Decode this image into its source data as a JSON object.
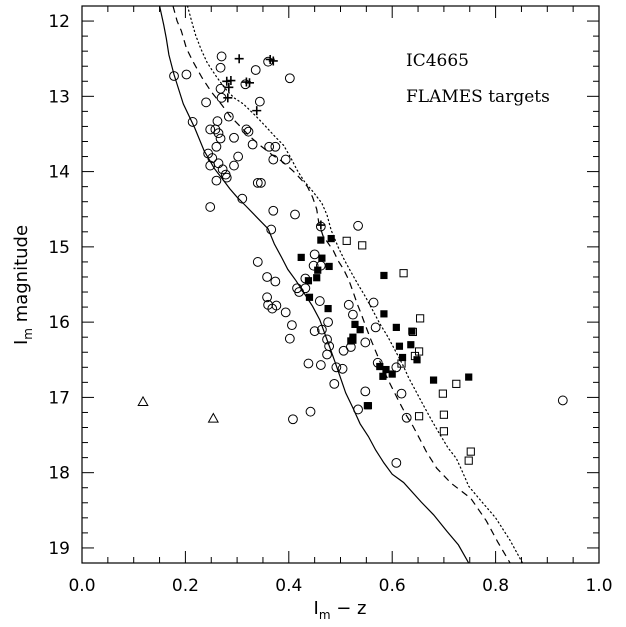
{
  "chart_data": {
    "type": "scatter",
    "title": "",
    "annotations": [
      "IC4665",
      "FLAMES targets"
    ],
    "xlabel_main": "I",
    "xlabel_sub": "m",
    "xlabel_rest": " − z",
    "ylabel_main": "I",
    "ylabel_sub": "m",
    "ylabel_rest": " magnitude",
    "xlim": [
      0.0,
      1.0
    ],
    "ylim": [
      19.2,
      11.8
    ],
    "x_inverted": false,
    "y_inverted": true,
    "x_ticks": [
      "0.0",
      "0.2",
      "0.4",
      "0.6",
      "0.8",
      "1.0"
    ],
    "y_ticks": [
      "12",
      "13",
      "14",
      "15",
      "16",
      "17",
      "18",
      "19"
    ],
    "grid": false,
    "legend": "none",
    "series": [
      {
        "marker": "open-circle",
        "points": [
          [
            0.27,
            12.47
          ],
          [
            0.336,
            12.65
          ],
          [
            0.36,
            12.54
          ],
          [
            0.178,
            12.73
          ],
          [
            0.202,
            12.71
          ],
          [
            0.268,
            12.62
          ],
          [
            0.316,
            12.84
          ],
          [
            0.268,
            12.9
          ],
          [
            0.402,
            12.76
          ],
          [
            0.27,
            13.02
          ],
          [
            0.24,
            13.08
          ],
          [
            0.344,
            13.07
          ],
          [
            0.284,
            13.27
          ],
          [
            0.262,
            13.33
          ],
          [
            0.214,
            13.34
          ],
          [
            0.258,
            13.44
          ],
          [
            0.248,
            13.44
          ],
          [
            0.264,
            13.49
          ],
          [
            0.322,
            13.47
          ],
          [
            0.318,
            13.44
          ],
          [
            0.294,
            13.55
          ],
          [
            0.268,
            13.56
          ],
          [
            0.26,
            13.67
          ],
          [
            0.244,
            13.76
          ],
          [
            0.33,
            13.64
          ],
          [
            0.362,
            13.67
          ],
          [
            0.374,
            13.67
          ],
          [
            0.302,
            13.8
          ],
          [
            0.264,
            13.89
          ],
          [
            0.294,
            13.92
          ],
          [
            0.252,
            13.82
          ],
          [
            0.248,
            13.92
          ],
          [
            0.37,
            13.84
          ],
          [
            0.394,
            13.84
          ],
          [
            0.26,
            14.12
          ],
          [
            0.28,
            14.08
          ],
          [
            0.272,
            13.97
          ],
          [
            0.278,
            14.04
          ],
          [
            0.346,
            14.15
          ],
          [
            0.34,
            14.15
          ],
          [
            0.31,
            14.36
          ],
          [
            0.248,
            14.47
          ],
          [
            0.37,
            14.52
          ],
          [
            0.412,
            14.57
          ],
          [
            0.366,
            14.77
          ],
          [
            0.462,
            14.73
          ],
          [
            0.534,
            14.72
          ],
          [
            0.45,
            15.1
          ],
          [
            0.34,
            15.2
          ],
          [
            0.448,
            15.25
          ],
          [
            0.462,
            15.25
          ],
          [
            0.358,
            15.4
          ],
          [
            0.374,
            15.46
          ],
          [
            0.432,
            15.42
          ],
          [
            0.416,
            15.55
          ],
          [
            0.432,
            15.55
          ],
          [
            0.42,
            15.6
          ],
          [
            0.358,
            15.67
          ],
          [
            0.36,
            15.77
          ],
          [
            0.376,
            15.78
          ],
          [
            0.368,
            15.82
          ],
          [
            0.394,
            15.87
          ],
          [
            0.46,
            15.72
          ],
          [
            0.516,
            15.77
          ],
          [
            0.564,
            15.74
          ],
          [
            0.524,
            15.9
          ],
          [
            0.476,
            16.0
          ],
          [
            0.406,
            16.04
          ],
          [
            0.568,
            16.07
          ],
          [
            0.45,
            16.12
          ],
          [
            0.464,
            16.1
          ],
          [
            0.402,
            16.22
          ],
          [
            0.474,
            16.23
          ],
          [
            0.478,
            16.32
          ],
          [
            0.506,
            16.38
          ],
          [
            0.474,
            16.43
          ],
          [
            0.548,
            16.27
          ],
          [
            0.52,
            16.33
          ],
          [
            0.572,
            16.54
          ],
          [
            0.438,
            16.55
          ],
          [
            0.462,
            16.57
          ],
          [
            0.492,
            16.6
          ],
          [
            0.608,
            16.6
          ],
          [
            0.504,
            16.62
          ],
          [
            0.488,
            16.82
          ],
          [
            0.548,
            16.92
          ],
          [
            0.618,
            16.95
          ],
          [
            0.628,
            17.27
          ],
          [
            0.534,
            17.16
          ],
          [
            0.442,
            17.19
          ],
          [
            0.408,
            17.29
          ],
          [
            0.608,
            17.87
          ],
          [
            0.93,
            17.04
          ]
        ]
      },
      {
        "marker": "filled-square",
        "points": [
          [
            0.462,
            14.91
          ],
          [
            0.482,
            14.89
          ],
          [
            0.424,
            15.14
          ],
          [
            0.464,
            15.15
          ],
          [
            0.478,
            15.26
          ],
          [
            0.456,
            15.31
          ],
          [
            0.584,
            15.38
          ],
          [
            0.438,
            15.45
          ],
          [
            0.454,
            15.41
          ],
          [
            0.44,
            15.67
          ],
          [
            0.584,
            15.89
          ],
          [
            0.476,
            15.82
          ],
          [
            0.528,
            16.03
          ],
          [
            0.538,
            16.1
          ],
          [
            0.608,
            16.07
          ],
          [
            0.638,
            16.12
          ],
          [
            0.524,
            16.2
          ],
          [
            0.52,
            16.25
          ],
          [
            0.524,
            16.24
          ],
          [
            0.614,
            16.32
          ],
          [
            0.636,
            16.3
          ],
          [
            0.62,
            16.47
          ],
          [
            0.648,
            16.5
          ],
          [
            0.576,
            16.59
          ],
          [
            0.588,
            16.63
          ],
          [
            0.582,
            16.72
          ],
          [
            0.6,
            16.69
          ],
          [
            0.68,
            16.77
          ],
          [
            0.748,
            16.73
          ],
          [
            0.552,
            17.11
          ],
          [
            0.554,
            17.11
          ]
        ]
      },
      {
        "marker": "open-square",
        "points": [
          [
            0.512,
            14.92
          ],
          [
            0.542,
            14.98
          ],
          [
            0.622,
            15.35
          ],
          [
            0.654,
            15.95
          ],
          [
            0.64,
            16.13
          ],
          [
            0.652,
            16.39
          ],
          [
            0.644,
            16.45
          ],
          [
            0.618,
            16.55
          ],
          [
            0.724,
            16.82
          ],
          [
            0.698,
            16.95
          ],
          [
            0.7,
            17.23
          ],
          [
            0.652,
            17.25
          ],
          [
            0.7,
            17.45
          ],
          [
            0.752,
            17.72
          ],
          [
            0.748,
            17.84
          ]
        ]
      },
      {
        "marker": "plus",
        "points": [
          [
            0.304,
            12.5
          ],
          [
            0.364,
            12.51
          ],
          [
            0.37,
            12.53
          ],
          [
            0.288,
            12.79
          ],
          [
            0.28,
            12.8
          ],
          [
            0.318,
            12.81
          ],
          [
            0.324,
            12.82
          ],
          [
            0.284,
            12.88
          ],
          [
            0.282,
            13.02
          ],
          [
            0.338,
            13.19
          ],
          [
            0.462,
            14.71
          ]
        ]
      },
      {
        "marker": "open-triangle",
        "points": [
          [
            0.118,
            17.06
          ],
          [
            0.254,
            17.28
          ]
        ]
      },
      {
        "style": "solid",
        "points": [
          [
            0.15,
            11.8
          ],
          [
            0.158,
            12.05
          ],
          [
            0.163,
            12.23
          ],
          [
            0.168,
            12.45
          ],
          [
            0.178,
            12.71
          ],
          [
            0.196,
            13.1
          ],
          [
            0.218,
            13.42
          ],
          [
            0.236,
            13.72
          ],
          [
            0.256,
            13.96
          ],
          [
            0.274,
            14.12
          ],
          [
            0.286,
            14.23
          ],
          [
            0.3,
            14.34
          ],
          [
            0.316,
            14.45
          ],
          [
            0.34,
            14.62
          ],
          [
            0.36,
            14.76
          ],
          [
            0.372,
            14.96
          ],
          [
            0.386,
            15.14
          ],
          [
            0.398,
            15.3
          ],
          [
            0.414,
            15.45
          ],
          [
            0.432,
            15.64
          ],
          [
            0.446,
            15.79
          ],
          [
            0.46,
            15.97
          ],
          [
            0.47,
            16.16
          ],
          [
            0.48,
            16.35
          ],
          [
            0.49,
            16.54
          ],
          [
            0.5,
            16.74
          ],
          [
            0.51,
            16.94
          ],
          [
            0.524,
            17.14
          ],
          [
            0.538,
            17.35
          ],
          [
            0.554,
            17.52
          ],
          [
            0.568,
            17.7
          ],
          [
            0.584,
            17.87
          ],
          [
            0.6,
            18.02
          ],
          [
            0.622,
            18.13
          ],
          [
            0.656,
            18.39
          ],
          [
            0.68,
            18.56
          ],
          [
            0.706,
            18.78
          ],
          [
            0.728,
            18.96
          ],
          [
            0.748,
            19.2
          ]
        ]
      },
      {
        "style": "dashed",
        "points": [
          [
            0.176,
            11.8
          ],
          [
            0.184,
            12.0
          ],
          [
            0.192,
            12.13
          ],
          [
            0.202,
            12.36
          ],
          [
            0.214,
            12.53
          ],
          [
            0.232,
            12.75
          ],
          [
            0.25,
            12.94
          ],
          [
            0.27,
            13.11
          ],
          [
            0.286,
            13.26
          ],
          [
            0.306,
            13.4
          ],
          [
            0.326,
            13.54
          ],
          [
            0.346,
            13.66
          ],
          [
            0.368,
            13.78
          ],
          [
            0.388,
            13.87
          ],
          [
            0.408,
            13.99
          ],
          [
            0.422,
            14.09
          ],
          [
            0.436,
            14.2
          ],
          [
            0.446,
            14.34
          ],
          [
            0.454,
            14.5
          ],
          [
            0.458,
            14.68
          ],
          [
            0.466,
            14.85
          ],
          [
            0.486,
            15.05
          ],
          [
            0.496,
            15.19
          ],
          [
            0.506,
            15.3
          ],
          [
            0.516,
            15.44
          ],
          [
            0.524,
            15.59
          ],
          [
            0.532,
            15.75
          ],
          [
            0.54,
            15.89
          ],
          [
            0.548,
            16.04
          ],
          [
            0.558,
            16.22
          ],
          [
            0.57,
            16.42
          ],
          [
            0.582,
            16.62
          ],
          [
            0.596,
            16.82
          ],
          [
            0.612,
            17.04
          ],
          [
            0.626,
            17.22
          ],
          [
            0.64,
            17.38
          ],
          [
            0.654,
            17.56
          ],
          [
            0.666,
            17.72
          ],
          [
            0.686,
            17.94
          ],
          [
            0.714,
            18.14
          ],
          [
            0.752,
            18.34
          ],
          [
            0.782,
            18.64
          ],
          [
            0.804,
            18.92
          ],
          [
            0.828,
            19.2
          ]
        ]
      },
      {
        "style": "dotted",
        "points": [
          [
            0.204,
            11.8
          ],
          [
            0.212,
            12.0
          ],
          [
            0.22,
            12.19
          ],
          [
            0.23,
            12.37
          ],
          [
            0.242,
            12.55
          ],
          [
            0.258,
            12.72
          ],
          [
            0.276,
            12.89
          ],
          [
            0.294,
            13.02
          ],
          [
            0.312,
            13.1
          ],
          [
            0.336,
            13.26
          ],
          [
            0.354,
            13.39
          ],
          [
            0.374,
            13.54
          ],
          [
            0.39,
            13.65
          ],
          [
            0.404,
            13.82
          ],
          [
            0.416,
            13.98
          ],
          [
            0.43,
            14.13
          ],
          [
            0.446,
            14.26
          ],
          [
            0.464,
            14.42
          ],
          [
            0.474,
            14.58
          ],
          [
            0.482,
            14.78
          ],
          [
            0.496,
            15.01
          ],
          [
            0.508,
            15.18
          ],
          [
            0.52,
            15.33
          ],
          [
            0.534,
            15.5
          ],
          [
            0.548,
            15.66
          ],
          [
            0.562,
            15.84
          ],
          [
            0.576,
            16.02
          ],
          [
            0.592,
            16.2
          ],
          [
            0.606,
            16.38
          ],
          [
            0.62,
            16.56
          ],
          [
            0.632,
            16.74
          ],
          [
            0.646,
            16.92
          ],
          [
            0.66,
            17.1
          ],
          [
            0.676,
            17.3
          ],
          [
            0.692,
            17.49
          ],
          [
            0.708,
            17.67
          ],
          [
            0.724,
            17.81
          ],
          [
            0.736,
            17.99
          ],
          [
            0.748,
            18.18
          ],
          [
            0.77,
            18.36
          ],
          [
            0.8,
            18.6
          ],
          [
            0.828,
            18.9
          ],
          [
            0.852,
            19.2
          ]
        ]
      }
    ]
  }
}
